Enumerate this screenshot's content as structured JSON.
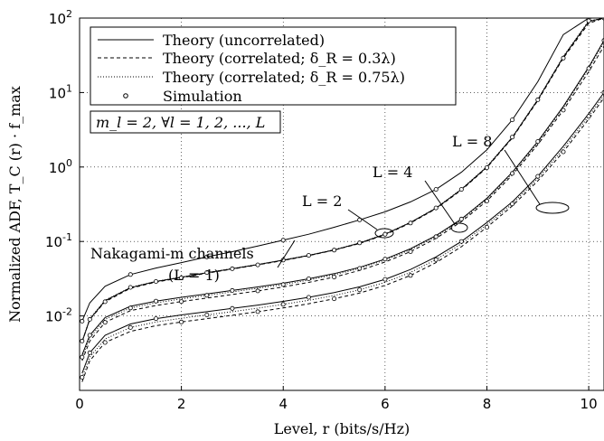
{
  "chart_data": {
    "type": "line",
    "title": "",
    "xlabel": "Level, r (bits/s/Hz)",
    "ylabel": "Normalized ADF, T_C (r) · f_max",
    "xlim": [
      0,
      10.3
    ],
    "ylim_log10": [
      -3,
      2
    ],
    "y_scale": "log",
    "grid": true,
    "x_ticks": [
      0,
      2,
      4,
      6,
      8,
      10
    ],
    "y_ticks": [
      {
        "base": "10",
        "exp": "-2",
        "value": 0.01
      },
      {
        "base": "10",
        "exp": "-1",
        "value": 0.1
      },
      {
        "base": "10",
        "exp": "0",
        "value": 1
      },
      {
        "base": "10",
        "exp": "1",
        "value": 10
      },
      {
        "base": "10",
        "exp": "2",
        "value": 100
      }
    ],
    "legend": {
      "position": "top-left",
      "entries": [
        {
          "label": "Theory (uncorrelated)",
          "style": "solid"
        },
        {
          "label": "Theory (correlated; δ_R = 0.3λ)",
          "style": "dashed"
        },
        {
          "label": "Theory (correlated; δ_R = 0.75λ)",
          "style": "dotted"
        },
        {
          "label": "Simulation",
          "style": "marker"
        }
      ]
    },
    "parameter_box": "m_l = 2, ∀l = 1, 2, ..., L",
    "annotations": [
      {
        "text": "Nakagami-m channels",
        "x": 3.3,
        "y": 0.2
      },
      {
        "text": "(L = 1)",
        "x": 3.3,
        "y": 0.2
      },
      {
        "text": "L = 2",
        "x": 6.0,
        "y": 0.135
      },
      {
        "text": "L = 4",
        "x": 7.5,
        "y": 0.155
      },
      {
        "text": "L = 8",
        "x": 9.2,
        "y": 0.31
      }
    ],
    "series": [
      {
        "group": "L=1",
        "style": "solid",
        "x": [
          0.05,
          0.2,
          0.5,
          1,
          1.5,
          2,
          2.5,
          3,
          3.5,
          4,
          4.5,
          5,
          5.5,
          6,
          6.5,
          7,
          7.5,
          8,
          8.5,
          9,
          9.5,
          10,
          10.3
        ],
        "y": [
          0.0085,
          0.015,
          0.025,
          0.036,
          0.044,
          0.052,
          0.062,
          0.073,
          0.087,
          0.104,
          0.125,
          0.155,
          0.195,
          0.25,
          0.34,
          0.5,
          0.85,
          1.7,
          4.3,
          14,
          60,
          100,
          100
        ]
      },
      {
        "group": "L=2",
        "style": "solid",
        "x": [
          0.05,
          0.2,
          0.5,
          1,
          1.5,
          2,
          2.5,
          3,
          3.5,
          4,
          4.5,
          5,
          5.5,
          6,
          6.5,
          7,
          7.5,
          8,
          8.5,
          9,
          9.5,
          10,
          10.3
        ],
        "y": [
          0.0045,
          0.009,
          0.016,
          0.024,
          0.029,
          0.033,
          0.038,
          0.043,
          0.049,
          0.056,
          0.065,
          0.077,
          0.095,
          0.125,
          0.18,
          0.28,
          0.5,
          1.0,
          2.5,
          8,
          30,
          90,
          100
        ]
      },
      {
        "group": "L=2",
        "style": "dashed",
        "x": [
          0.05,
          0.2,
          0.5,
          1,
          1.5,
          2,
          2.5,
          3,
          3.5,
          4,
          4.5,
          5,
          5.5,
          6,
          6.5,
          7,
          7.5,
          8,
          8.5,
          9,
          9.5,
          10,
          10.3
        ],
        "y": [
          0.0045,
          0.009,
          0.0155,
          0.0235,
          0.0285,
          0.0325,
          0.0375,
          0.0425,
          0.0485,
          0.0555,
          0.0645,
          0.0765,
          0.094,
          0.123,
          0.177,
          0.275,
          0.49,
          0.98,
          2.45,
          7.8,
          29,
          85,
          100
        ]
      },
      {
        "group": "L=2",
        "style": "dotted",
        "x": [
          0.05,
          0.2,
          0.5,
          1,
          1.5,
          2,
          2.5,
          3,
          3.5,
          4,
          4.5,
          5,
          5.5,
          6,
          6.5,
          7,
          7.5,
          8,
          8.5,
          9,
          9.5,
          10,
          10.3
        ],
        "y": [
          0.0046,
          0.0092,
          0.0162,
          0.0242,
          0.0292,
          0.0332,
          0.0382,
          0.0432,
          0.0492,
          0.0562,
          0.0652,
          0.0775,
          0.0955,
          0.126,
          0.181,
          0.282,
          0.505,
          1.01,
          2.52,
          8.1,
          30.5,
          92,
          100
        ]
      },
      {
        "group": "L=4",
        "style": "solid",
        "x": [
          0.05,
          0.2,
          0.5,
          1,
          1.5,
          2,
          2.5,
          3,
          3.5,
          4,
          4.5,
          5,
          5.5,
          6,
          6.5,
          7,
          7.5,
          8,
          8.5,
          9,
          9.5,
          10,
          10.3
        ],
        "y": [
          0.003,
          0.0055,
          0.0095,
          0.0135,
          0.0158,
          0.0178,
          0.0198,
          0.022,
          0.0245,
          0.0275,
          0.0315,
          0.037,
          0.045,
          0.058,
          0.08,
          0.12,
          0.2,
          0.38,
          0.85,
          2.2,
          6.5,
          22,
          50
        ]
      },
      {
        "group": "L=4",
        "style": "dashed",
        "x": [
          0.05,
          0.2,
          0.5,
          1,
          1.5,
          2,
          2.5,
          3,
          3.5,
          4,
          4.5,
          5,
          5.5,
          6,
          6.5,
          7,
          7.5,
          8,
          8.5,
          9,
          9.5,
          10,
          10.3
        ],
        "y": [
          0.0025,
          0.0046,
          0.0082,
          0.0118,
          0.0138,
          0.0156,
          0.0174,
          0.0194,
          0.0217,
          0.0245,
          0.0282,
          0.0333,
          0.0408,
          0.053,
          0.073,
          0.11,
          0.185,
          0.35,
          0.78,
          2.0,
          5.8,
          19,
          42
        ]
      },
      {
        "group": "L=4",
        "style": "dotted",
        "x": [
          0.05,
          0.2,
          0.5,
          1,
          1.5,
          2,
          2.5,
          3,
          3.5,
          4,
          4.5,
          5,
          5.5,
          6,
          6.5,
          7,
          7.5,
          8,
          8.5,
          9,
          9.5,
          10,
          10.3
        ],
        "y": [
          0.0028,
          0.0051,
          0.009,
          0.0128,
          0.015,
          0.0169,
          0.0189,
          0.021,
          0.0235,
          0.0264,
          0.0303,
          0.0357,
          0.0435,
          0.0562,
          0.0775,
          0.116,
          0.194,
          0.368,
          0.82,
          2.1,
          6.2,
          21,
          47
        ]
      },
      {
        "group": "L=8",
        "style": "solid",
        "x": [
          0.05,
          0.2,
          0.5,
          1,
          1.5,
          2,
          2.5,
          3,
          3.5,
          4,
          4.5,
          5,
          5.5,
          6,
          6.5,
          7,
          7.5,
          8,
          8.5,
          9,
          9.5,
          10,
          10.3
        ],
        "y": [
          0.0017,
          0.0032,
          0.0055,
          0.0078,
          0.0092,
          0.0103,
          0.0114,
          0.0126,
          0.014,
          0.0157,
          0.0178,
          0.0206,
          0.0246,
          0.031,
          0.042,
          0.062,
          0.1,
          0.18,
          0.34,
          0.75,
          1.9,
          5.2,
          10
        ]
      },
      {
        "group": "L=8",
        "style": "dashed",
        "x": [
          0.05,
          0.2,
          0.5,
          1,
          1.5,
          2,
          2.5,
          3,
          3.5,
          4,
          4.5,
          5,
          5.5,
          6,
          6.5,
          7,
          7.5,
          8,
          8.5,
          9,
          9.5,
          10,
          10.3
        ],
        "y": [
          0.0013,
          0.0025,
          0.0044,
          0.0062,
          0.0074,
          0.0083,
          0.0092,
          0.0102,
          0.0114,
          0.0128,
          0.0146,
          0.017,
          0.0203,
          0.0257,
          0.035,
          0.052,
          0.085,
          0.155,
          0.3,
          0.65,
          1.6,
          4.4,
          8.5
        ]
      },
      {
        "group": "L=8",
        "style": "dotted",
        "x": [
          0.05,
          0.2,
          0.5,
          1,
          1.5,
          2,
          2.5,
          3,
          3.5,
          4,
          4.5,
          5,
          5.5,
          6,
          6.5,
          7,
          7.5,
          8,
          8.5,
          9,
          9.5,
          10,
          10.3
        ],
        "y": [
          0.0015,
          0.0028,
          0.0049,
          0.007,
          0.0083,
          0.0093,
          0.0103,
          0.0114,
          0.0127,
          0.0143,
          0.0162,
          0.0188,
          0.0224,
          0.0283,
          0.0385,
          0.057,
          0.093,
          0.168,
          0.32,
          0.7,
          1.75,
          4.8,
          9.2
        ]
      }
    ]
  }
}
